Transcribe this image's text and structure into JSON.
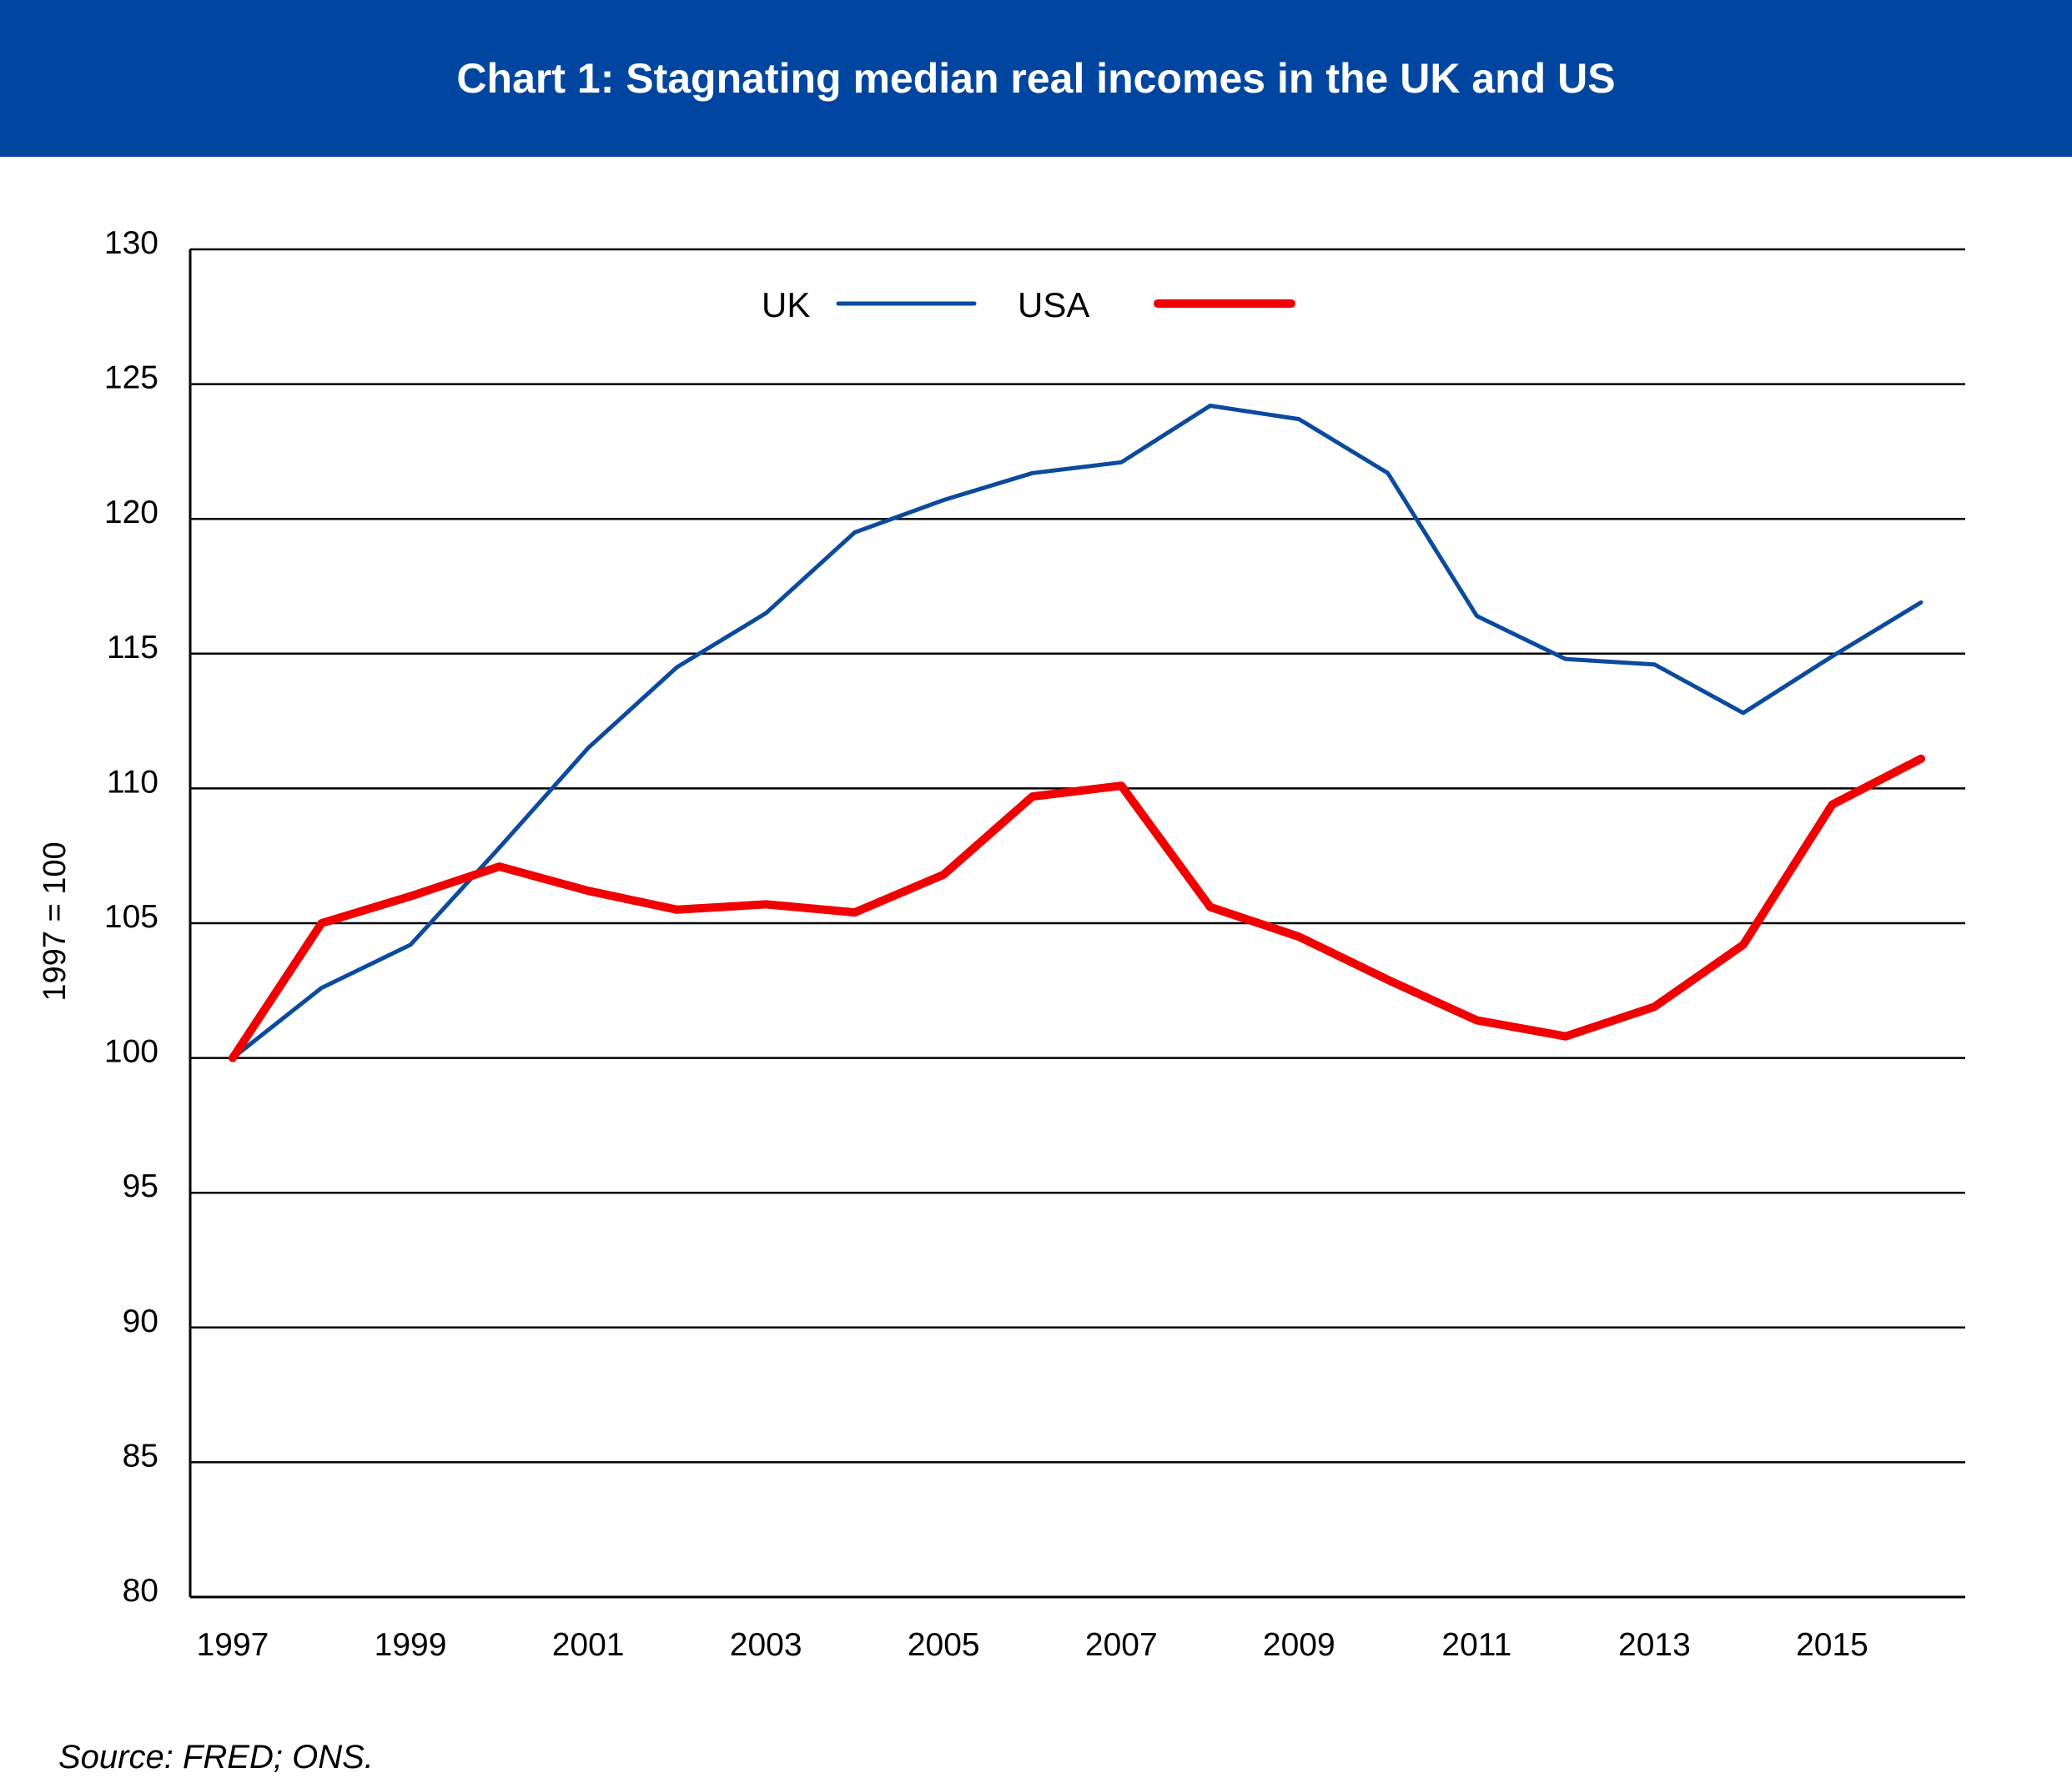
{
  "header": {
    "title": "Chart 1: Stagnating median real incomes in the UK and US",
    "background_color": "#0046A0"
  },
  "footer": {
    "source": "Source: FRED; ONS."
  },
  "chart_data": {
    "type": "line",
    "title": "Chart 1: Stagnating median real incomes in the UK and US",
    "xlabel": "",
    "ylabel": "1997 = 100",
    "ylim": [
      80,
      130
    ],
    "xlim": [
      1997,
      2016
    ],
    "y_ticks": [
      130,
      125,
      120,
      115,
      110,
      105,
      100,
      95,
      90,
      85,
      80
    ],
    "x_ticks": [
      1997,
      1999,
      2001,
      2003,
      2005,
      2007,
      2009,
      2011,
      2013,
      2015
    ],
    "grid": true,
    "legend_position": "top-center",
    "x": [
      1997,
      1998,
      1999,
      2000,
      2001,
      2002,
      2003,
      2004,
      2005,
      2006,
      2007,
      2008,
      2009,
      2010,
      2011,
      2012,
      2013,
      2014,
      2015,
      2016
    ],
    "series": [
      {
        "name": "UK",
        "color": "#0B4A9E",
        "values": [
          100,
          102.6,
          104.2,
          107.8,
          111.5,
          114.5,
          116.5,
          119.5,
          120.7,
          121.7,
          122.1,
          124.2,
          123.7,
          121.7,
          116.4,
          114.8,
          114.6,
          112.8,
          114.9,
          116.9
        ]
      },
      {
        "name": "USA",
        "color": "#F00000",
        "values": [
          100,
          105,
          106,
          107.1,
          106.2,
          105.5,
          105.7,
          105.4,
          106.8,
          109.7,
          110.1,
          105.6,
          104.5,
          102.9,
          101.4,
          100.8,
          101.9,
          104.2,
          109.4,
          111.1
        ]
      }
    ]
  }
}
